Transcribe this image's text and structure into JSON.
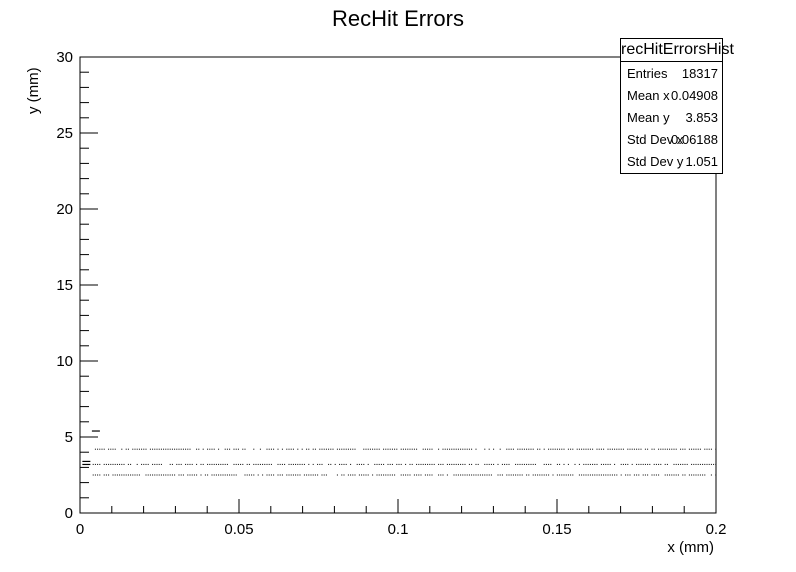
{
  "chart_data": {
    "type": "scatter",
    "title": "RecHit Errors",
    "xlabel": "x (mm)",
    "ylabel": "y (mm)",
    "xlim": [
      0,
      0.2
    ],
    "ylim": [
      0,
      30
    ],
    "x_ticks": [
      "0",
      "0.05",
      "0.1",
      "0.15",
      "0.2"
    ],
    "y_ticks": [
      "0",
      "5",
      "10",
      "15",
      "20",
      "25",
      "30"
    ],
    "bands": [
      {
        "y": 4.2,
        "x_range": [
          0.004,
          0.2
        ]
      },
      {
        "y": 3.2,
        "x_range": [
          0.004,
          0.2
        ]
      },
      {
        "y": 2.5,
        "x_range": [
          0.004,
          0.2
        ]
      }
    ],
    "outliers": [
      {
        "x": 0.005,
        "y": 5.4
      },
      {
        "x": 0.002,
        "y": 3.4
      },
      {
        "x": 0.002,
        "y": 3.2
      }
    ],
    "stats": {
      "name": "recHitErrorsHist",
      "rows": [
        {
          "label": "Entries",
          "value": "18317"
        },
        {
          "label": "Mean x",
          "value": "0.04908"
        },
        {
          "label": "Mean y",
          "value": "3.853"
        },
        {
          "label": "Std Dev x",
          "value": "0.06188"
        },
        {
          "label": "Std Dev y",
          "value": "1.051"
        }
      ]
    }
  }
}
